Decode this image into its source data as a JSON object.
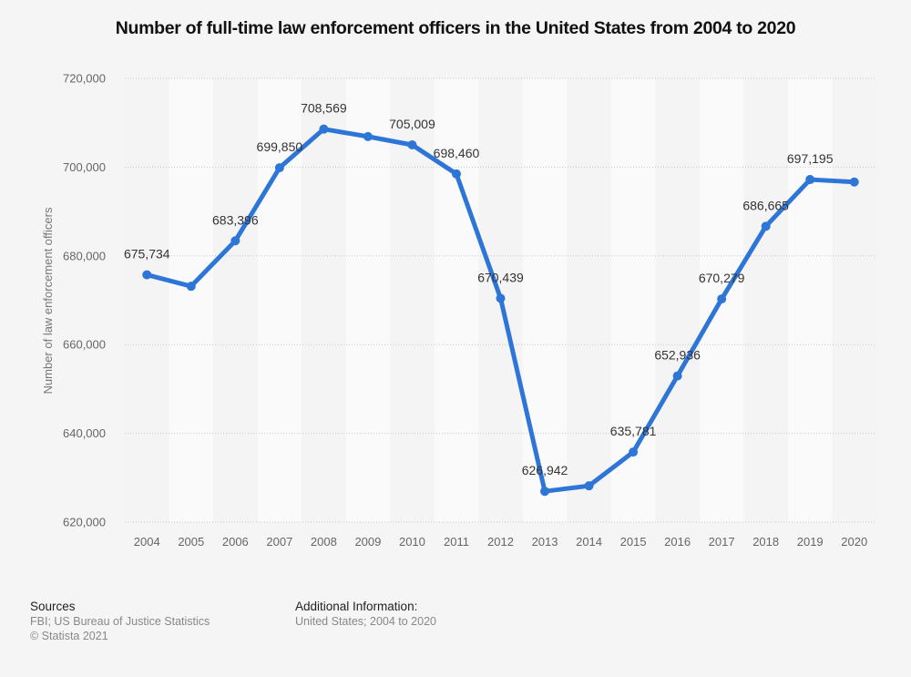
{
  "chart_data": {
    "type": "line",
    "title": "Number of full-time law enforcement officers in the United States from 2004 to 2020",
    "xlabel": "",
    "ylabel": "Number of law enforcement officers",
    "categories": [
      "2004",
      "2005",
      "2006",
      "2007",
      "2008",
      "2009",
      "2010",
      "2011",
      "2012",
      "2013",
      "2014",
      "2015",
      "2016",
      "2017",
      "2018",
      "2019",
      "2020"
    ],
    "series": [
      {
        "name": "Number of law enforcement officers",
        "values": [
          675734,
          673146,
          683396,
          699850,
          708569,
          706886,
          705009,
          698460,
          670439,
          626942,
          628179,
          635781,
          652936,
          670279,
          686665,
          697195,
          696644
        ],
        "labels": [
          "675,734",
          "",
          "683,396",
          "699,850",
          "708,569",
          "",
          "705,009",
          "698,460",
          "670,439",
          "626,942",
          "",
          "635,781",
          "652,936",
          "670,279",
          "686,665",
          "697,195",
          ""
        ]
      }
    ],
    "ylim": [
      620000,
      720000
    ],
    "yticks": [
      620000,
      640000,
      660000,
      680000,
      700000,
      720000
    ],
    "ytick_labels": [
      "620,000",
      "640,000",
      "660,000",
      "680,000",
      "700,000",
      "720,000"
    ],
    "grid": true,
    "legend": "none",
    "line_color": "#2e75d8"
  },
  "footer": {
    "sources_heading": "Sources",
    "sources_text": "FBI; US Bureau of Justice Statistics",
    "copyright": "© Statista 2021",
    "additional_heading": "Additional Information:",
    "additional_text": "United States; 2004 to 2020"
  }
}
